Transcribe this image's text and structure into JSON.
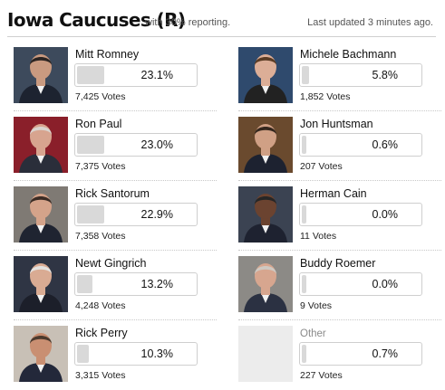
{
  "header": {
    "title": "Iowa Caucuses (R)",
    "reporting": "with 30% reporting.",
    "updated": "Last updated 3 minutes ago."
  },
  "candidates": [
    {
      "name": "Mitt Romney",
      "percent": "23.1%",
      "votes": "7,425 Votes",
      "share": 23.1,
      "bg": "#3d4a5c",
      "skin": "#c99a80",
      "hair": "#2b2422",
      "suit": "#1d2330"
    },
    {
      "name": "Ron Paul",
      "percent": "23.0%",
      "votes": "7,375 Votes",
      "share": 23.0,
      "bg": "#8a1f2a",
      "skin": "#d7a48f",
      "hair": "#d9d4cf",
      "suit": "#2a2e3a"
    },
    {
      "name": "Rick Santorum",
      "percent": "22.9%",
      "votes": "7,358 Votes",
      "share": 22.9,
      "bg": "#7f7a74",
      "skin": "#d4a38a",
      "hair": "#3a2b24",
      "suit": "#1f2431"
    },
    {
      "name": "Newt Gingrich",
      "percent": "13.2%",
      "votes": "4,248 Votes",
      "share": 13.2,
      "bg": "#2f3544",
      "skin": "#d9ab93",
      "hair": "#e4e2df",
      "suit": "#1c1f2a"
    },
    {
      "name": "Rick Perry",
      "percent": "10.3%",
      "votes": "3,315 Votes",
      "share": 10.3,
      "bg": "#c8c0b6",
      "skin": "#c98f72",
      "hair": "#4b3a2e",
      "suit": "#23283a"
    },
    {
      "name": "Michele Bachmann",
      "percent": "5.8%",
      "votes": "1,852 Votes",
      "share": 5.8,
      "bg": "#2f4a6d",
      "skin": "#dcae97",
      "hair": "#5a3b23",
      "suit": "#222222"
    },
    {
      "name": "Jon Huntsman",
      "percent": "0.6%",
      "votes": "207 Votes",
      "share": 0.6,
      "bg": "#6a4a2e",
      "skin": "#d0a085",
      "hair": "#33261d",
      "suit": "#1d2230"
    },
    {
      "name": "Herman Cain",
      "percent": "0.0%",
      "votes": "11 Votes",
      "share": 0.0,
      "bg": "#3b4352",
      "skin": "#6b4330",
      "hair": "#262626",
      "suit": "#1e2230"
    },
    {
      "name": "Buddy Roemer",
      "percent": "0.0%",
      "votes": "9 Votes",
      "share": 0.0,
      "bg": "#8c8a86",
      "skin": "#d7a68f",
      "hair": "#cfc9c2",
      "suit": "#2b3142"
    }
  ],
  "other": {
    "name": "Other",
    "percent": "0.7%",
    "votes": "227 Votes",
    "share": 0.7
  }
}
